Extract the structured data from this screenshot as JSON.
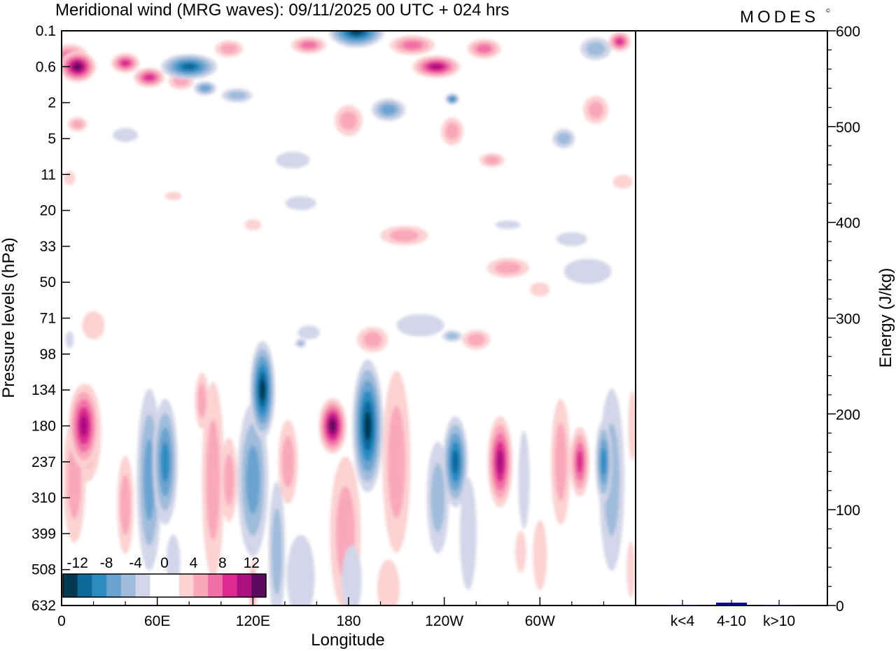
{
  "header": {
    "title": "Meridional wind (MRG waves):  09/11/2025  00 UTC  + 024 hrs",
    "brand": "MODES",
    "brand_mark": "©"
  },
  "chart_data": [
    {
      "type": "heatmap",
      "title": "Meridional wind (MRG waves)",
      "xlabel": "Longitude",
      "ylabel": "Pressure levels (hPa)",
      "x_ticks": [
        "0",
        "60E",
        "120E",
        "180",
        "120W",
        "60W"
      ],
      "x_tick_lon": [
        0,
        60,
        120,
        180,
        240,
        300
      ],
      "x_range": [
        0,
        360
      ],
      "y_ticks": [
        "0.1",
        "0.6",
        "2",
        "5",
        "11",
        "20",
        "33",
        "50",
        "71",
        "98",
        "134",
        "180",
        "237",
        "310",
        "399",
        "508",
        "632"
      ],
      "colorbar": {
        "labels": [
          "-12",
          "-8",
          "-4",
          "0",
          "4",
          "8",
          "12"
        ],
        "values": [
          -12,
          -8,
          -4,
          0,
          4,
          8,
          12
        ],
        "colors": [
          "#053852",
          "#10699b",
          "#2c8cc2",
          "#6aa3cf",
          "#9fbcdb",
          "#d3d6e8",
          "#ffffff",
          "#ffffff",
          "#fcd2d2",
          "#f9a7bb",
          "#f06fa6",
          "#dc2a8f",
          "#ad1181",
          "#5c0a5e"
        ]
      },
      "features": [
        {
          "lon": 170,
          "level": "180",
          "value": 14
        },
        {
          "lon": 192,
          "level": "180",
          "value": -14
        },
        {
          "lon": 126,
          "level": "134",
          "value": -12
        },
        {
          "lon": 65,
          "level": "237",
          "value": -8
        },
        {
          "lon": 14,
          "level": "180",
          "value": 9
        },
        {
          "lon": 247,
          "level": "237",
          "value": -10
        },
        {
          "lon": 275,
          "level": "237",
          "value": 10
        },
        {
          "lon": 325,
          "level": "237",
          "value": 8
        },
        {
          "lon": 340,
          "level": "237",
          "value": -8
        },
        {
          "lon": 185,
          "level": "0.1",
          "value": -13
        },
        {
          "lon": 235,
          "level": "0.6",
          "value": 10
        },
        {
          "lon": 80,
          "level": "0.6",
          "value": -10
        },
        {
          "lon": 10,
          "level": "0.6",
          "value": 12
        }
      ]
    },
    {
      "type": "bar",
      "ylabel": "Energy (J/kg)",
      "ylim": [
        0,
        600
      ],
      "y_ticks": [
        "0",
        "100",
        "200",
        "300",
        "400",
        "500",
        "600"
      ],
      "categories": [
        "k<4",
        "4-10",
        "k>10"
      ],
      "values": [
        0.5,
        3,
        0.5
      ],
      "colors": [
        "#1a1a80",
        "#0a0a96",
        "#1a1a80"
      ]
    }
  ]
}
